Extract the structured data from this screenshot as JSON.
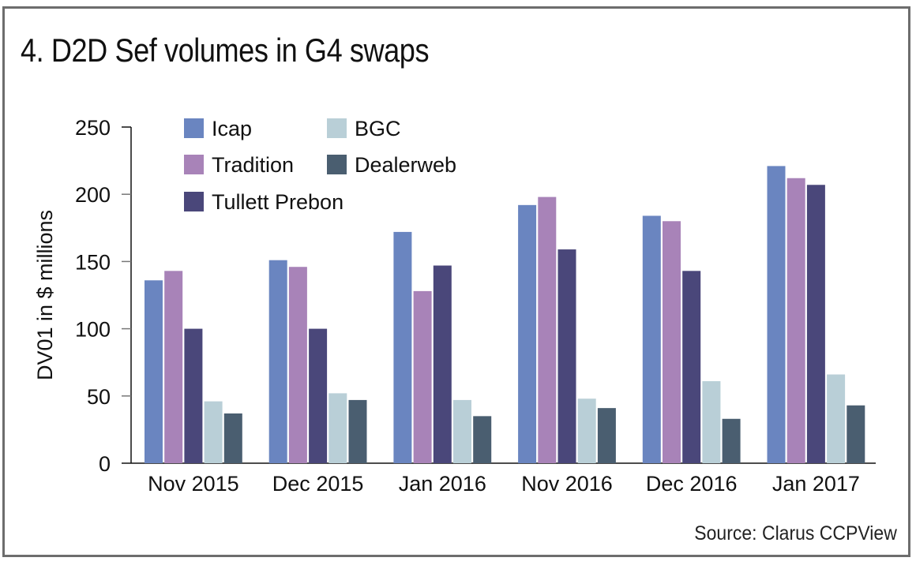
{
  "chart_data": {
    "type": "bar",
    "title": "4. D2D Sef volumes in G4 swaps",
    "xlabel": "",
    "ylabel": "DV01 in $ millions",
    "ylim": [
      0,
      250
    ],
    "yticks": [
      0,
      50,
      100,
      150,
      200,
      250
    ],
    "grid": false,
    "legend_position": "top-left",
    "categories": [
      "Nov 2015",
      "Dec 2015",
      "Jan 2016",
      "Nov 2016",
      "Dec 2016",
      "Jan 2017"
    ],
    "series": [
      {
        "name": "Icap",
        "color": "#6a85c0",
        "values": [
          136,
          151,
          172,
          192,
          184,
          221
        ]
      },
      {
        "name": "Tradition",
        "color": "#a883b8",
        "values": [
          143,
          146,
          128,
          198,
          180,
          212
        ]
      },
      {
        "name": "Tullett Prebon",
        "color": "#4a477a",
        "values": [
          100,
          100,
          147,
          159,
          143,
          207
        ]
      },
      {
        "name": "BGC",
        "color": "#b9cfd7",
        "values": [
          46,
          52,
          47,
          48,
          61,
          66
        ]
      },
      {
        "name": "Dealerweb",
        "color": "#4a5e70",
        "values": [
          37,
          47,
          35,
          41,
          33,
          43
        ]
      }
    ],
    "source": "Source: Clarus CCPView"
  }
}
